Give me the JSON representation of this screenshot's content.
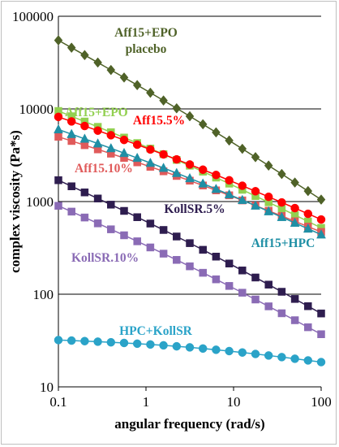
{
  "chart_data": {
    "type": "scatter",
    "title": "",
    "xlabel": "angular frequency (rad/s)",
    "ylabel": "complex viscosity (Pa*s)",
    "xscale": "log",
    "yscale": "log",
    "xlim": [
      0.1,
      100
    ],
    "ylim": [
      10,
      100000
    ],
    "x_ticks": [
      "0.1",
      "1",
      "10",
      "100"
    ],
    "y_ticks": [
      "10",
      "100",
      "1000",
      "10000",
      "100000"
    ],
    "grid": "horizontal major",
    "legend": "none (inline labels)",
    "series": [
      {
        "name": "Aff15+EPO placebo",
        "color": "#4f6228",
        "marker": "diamond",
        "y_start": 55000,
        "y_end": 1050,
        "points": 21,
        "label_lines": [
          "Aff15+EPO",
          "placebo"
        ]
      },
      {
        "name": "Aff15+EPO",
        "color": "#92d050",
        "marker": "square",
        "y_start": 9500,
        "y_end": 520,
        "points": 21,
        "label_lines": [
          "Aff15+EPO"
        ]
      },
      {
        "name": "Aff15.5%",
        "color": "#ff0000",
        "marker": "circle",
        "y_start": 8200,
        "y_end": 640,
        "points": 21,
        "label_lines": [
          "Aff15.5%"
        ]
      },
      {
        "name": "Aff15.10%",
        "color": "#e05a5a",
        "marker": "square",
        "y_start": 5000,
        "y_end": 470,
        "points": 21,
        "label_lines": [
          "Aff15.10%"
        ]
      },
      {
        "name": "Aff15+HPC",
        "color": "#1f8fa5",
        "marker": "triangle",
        "y_start": 6000,
        "y_end": 440,
        "points": 21,
        "label_lines": [
          "Aff15+HPC"
        ]
      },
      {
        "name": "KollSR.5%",
        "color": "#2e1d4f",
        "marker": "square",
        "y_start": 1700,
        "y_end": 62,
        "points": 21,
        "label_lines": [
          "KollSR.5%"
        ]
      },
      {
        "name": "KollSR.10%",
        "color": "#8a6bb5",
        "marker": "square",
        "y_start": 900,
        "y_end": 37,
        "points": 21,
        "label_lines": [
          "KollSR.10%"
        ]
      },
      {
        "name": "HPC+KollSR",
        "color": "#2aa3c8",
        "marker": "circle",
        "y_start": 32,
        "y_end": 18.5,
        "points": 21,
        "label_lines": [
          "HPC+KollSR"
        ]
      }
    ]
  }
}
